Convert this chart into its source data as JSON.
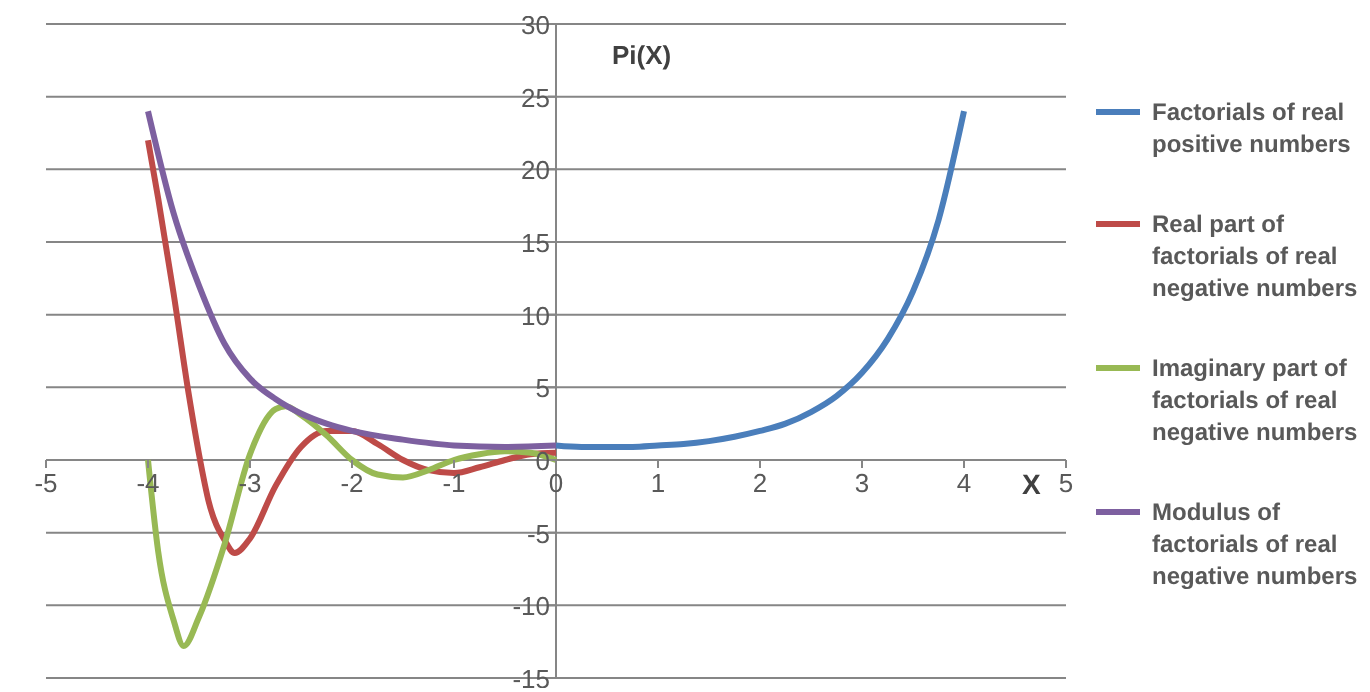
{
  "chart_data": {
    "type": "line",
    "xlabel": "X",
    "ylabel": "Pi(X)",
    "xlim": [
      -5,
      5
    ],
    "xticks": [
      -5,
      -4,
      -3,
      -2,
      -1,
      0,
      1,
      2,
      3,
      4,
      5
    ],
    "ylim": [
      -15,
      30
    ],
    "yticks": [
      -15,
      -10,
      -5,
      0,
      5,
      10,
      15,
      20,
      25,
      30
    ],
    "grid": "y",
    "legend": "right",
    "marker": "none",
    "line_style": "solid",
    "series": [
      {
        "name": "Factorials of real positive numbers",
        "color": "#4a7ebb",
        "x": [
          0,
          0.25,
          0.5,
          0.75,
          1,
          1.25,
          1.5,
          1.75,
          2,
          2.25,
          2.5,
          2.75,
          3,
          3.25,
          3.5,
          3.75,
          4
        ],
        "values": [
          1,
          0.9,
          0.9,
          0.9,
          1,
          1.1,
          1.3,
          1.6,
          2,
          2.5,
          3.3,
          4.4,
          6,
          8.3,
          11.6,
          16.5,
          24
        ]
      },
      {
        "name": "Real part of factorials of real negative numbers",
        "color": "#be4b48",
        "x": [
          -4,
          -3.9,
          -3.75,
          -3.6,
          -3.5,
          -3.4,
          -3.25,
          -3.15,
          -3,
          -2.75,
          -2.5,
          -2.25,
          -2,
          -1.75,
          -1.5,
          -1.25,
          -1,
          -0.75,
          -0.5,
          -0.25,
          0
        ],
        "values": [
          22,
          18,
          11.5,
          4.5,
          0.4,
          -3,
          -5.5,
          -6.4,
          -5.4,
          -1.8,
          0.9,
          2,
          2,
          1.1,
          0,
          -0.7,
          -0.9,
          -0.5,
          0,
          0.4,
          0.5
        ]
      },
      {
        "name": "Imaginary part of factorials of real negative numbers",
        "color": "#98b954",
        "x": [
          -4,
          -3.9,
          -3.75,
          -3.65,
          -3.5,
          -3.25,
          -3,
          -2.75,
          -2.65,
          -2.5,
          -2.25,
          -2,
          -1.75,
          -1.5,
          -1.25,
          -1,
          -0.75,
          -0.5,
          -0.25,
          0
        ],
        "values": [
          0,
          -6.3,
          -11,
          -12.8,
          -10.8,
          -5.8,
          0.4,
          3.5,
          3.7,
          3.1,
          1.7,
          0,
          -1,
          -1.2,
          -0.7,
          0,
          0.4,
          0.6,
          0.5,
          0
        ]
      },
      {
        "name": "Modulus of factorials of real negative numbers",
        "color": "#7d60a0",
        "x": [
          -4,
          -3.75,
          -3.5,
          -3.25,
          -3,
          -2.75,
          -2.5,
          -2.25,
          -2,
          -1.5,
          -1,
          -0.5,
          0
        ],
        "values": [
          24,
          17,
          12,
          8,
          5.6,
          4.2,
          3.2,
          2.5,
          2,
          1.4,
          1,
          0.9,
          1
        ]
      }
    ]
  }
}
